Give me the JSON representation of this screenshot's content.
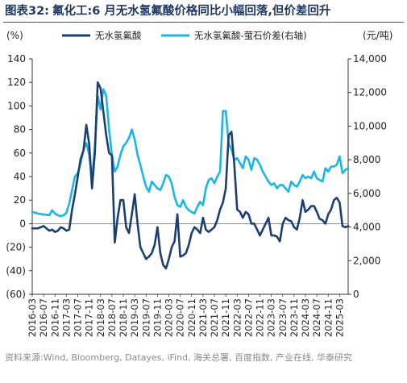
{
  "figure": {
    "number": "图表32:",
    "title": "氟化工:6 月无水氢氟酸价格同比小幅回落,但价差回升",
    "source": "资料来源:Wind, Bloomberg, Datayes, iFind, 海关总署, 百度指数, 产业在线, 华泰研究"
  },
  "colors": {
    "series1": "#1b3f73",
    "series2": "#19b6e8",
    "title": "#1f3864",
    "rule": "#9e2a2f"
  },
  "chart_data": {
    "type": "line",
    "left_unit": "(%)",
    "right_unit": "(元/吨)",
    "left_ticks": [
      "140",
      "120",
      "100",
      "80",
      "60",
      "40",
      "20",
      "0",
      "(20)",
      "(40)",
      "(60)"
    ],
    "right_ticks": [
      "14,000",
      "12,000",
      "10,000",
      "8,000",
      "6,000",
      "4,000",
      "2,000",
      "0"
    ],
    "ylim_left": [
      -60,
      140
    ],
    "ylim_right": [
      0,
      14000
    ],
    "x_tick_labels": [
      "2016-03",
      "2016-07",
      "2016-11",
      "2017-03",
      "2017-07",
      "2017-11",
      "2018-03",
      "2018-07",
      "2018-11",
      "2019-03",
      "2019-07",
      "2019-11",
      "2020-03",
      "2020-07",
      "2020-11",
      "2021-03",
      "2021-07",
      "2021-11",
      "2022-03",
      "2022-07",
      "2022-11",
      "2023-03",
      "2023-07",
      "2023-11",
      "2024-03",
      "2024-07",
      "2024-11",
      "2025-03"
    ],
    "x_start": "2016-03",
    "x_end": "2025-06",
    "legend": [
      "无水氢氟酸",
      "无水氢氟酸-萤石价差(右轴)"
    ],
    "series": [
      {
        "name": "无水氢氟酸",
        "axis": "left",
        "points": [
          [
            "2016-03",
            -4
          ],
          [
            "2016-05",
            -4
          ],
          [
            "2016-07",
            -2
          ],
          [
            "2016-08",
            -4
          ],
          [
            "2016-09",
            -6
          ],
          [
            "2016-10",
            -5
          ],
          [
            "2016-11",
            -7
          ],
          [
            "2016-12",
            -6
          ],
          [
            "2017-01",
            -3
          ],
          [
            "2017-02",
            -4
          ],
          [
            "2017-03",
            -6
          ],
          [
            "2017-04",
            -5
          ],
          [
            "2017-05",
            12
          ],
          [
            "2017-06",
            25
          ],
          [
            "2017-07",
            40
          ],
          [
            "2017-08",
            55
          ],
          [
            "2017-09",
            62
          ],
          [
            "2017-10",
            84
          ],
          [
            "2017-11",
            68
          ],
          [
            "2017-12",
            30
          ],
          [
            "2018-01",
            60
          ],
          [
            "2018-02",
            120
          ],
          [
            "2018-03",
            115
          ],
          [
            "2018-04",
            95
          ],
          [
            "2018-05",
            75
          ],
          [
            "2018-06",
            60
          ],
          [
            "2018-07",
            58
          ],
          [
            "2018-08",
            -16
          ],
          [
            "2018-09",
            5
          ],
          [
            "2018-10",
            20
          ],
          [
            "2018-11",
            20
          ],
          [
            "2018-12",
            -3
          ],
          [
            "2019-01",
            -8
          ],
          [
            "2019-02",
            8
          ],
          [
            "2019-03",
            25
          ],
          [
            "2019-04",
            0
          ],
          [
            "2019-05",
            -20
          ],
          [
            "2019-06",
            -25
          ],
          [
            "2019-07",
            -30
          ],
          [
            "2019-08",
            -28
          ],
          [
            "2019-09",
            -25
          ],
          [
            "2019-10",
            -18
          ],
          [
            "2019-11",
            -3
          ],
          [
            "2019-12",
            -25
          ],
          [
            "2020-01",
            -35
          ],
          [
            "2020-02",
            -38
          ],
          [
            "2020-03",
            -30
          ],
          [
            "2020-04",
            -20
          ],
          [
            "2020-05",
            -15
          ],
          [
            "2020-06",
            8
          ],
          [
            "2020-07",
            -28
          ],
          [
            "2020-08",
            -27
          ],
          [
            "2020-09",
            -25
          ],
          [
            "2020-10",
            -18
          ],
          [
            "2020-11",
            -8
          ],
          [
            "2020-12",
            -3
          ],
          [
            "2021-01",
            -5
          ],
          [
            "2021-02",
            -8
          ],
          [
            "2021-03",
            5
          ],
          [
            "2021-04",
            -5
          ],
          [
            "2021-05",
            -7
          ],
          [
            "2021-06",
            -5
          ],
          [
            "2021-07",
            -3
          ],
          [
            "2021-08",
            3
          ],
          [
            "2021-09",
            12
          ],
          [
            "2021-10",
            18
          ],
          [
            "2021-11",
            30
          ],
          [
            "2021-12",
            75
          ],
          [
            "2022-01",
            78
          ],
          [
            "2022-02",
            50
          ],
          [
            "2022-03",
            12
          ],
          [
            "2022-04",
            10
          ],
          [
            "2022-05",
            5
          ],
          [
            "2022-06",
            10
          ],
          [
            "2022-07",
            8
          ],
          [
            "2022-08",
            0
          ],
          [
            "2022-09",
            0
          ],
          [
            "2022-10",
            -5
          ],
          [
            "2022-11",
            -10
          ],
          [
            "2022-12",
            -5
          ],
          [
            "2023-01",
            0
          ],
          [
            "2023-02",
            5
          ],
          [
            "2023-03",
            -10
          ],
          [
            "2023-04",
            -10
          ],
          [
            "2023-05",
            -11
          ],
          [
            "2023-06",
            -15
          ],
          [
            "2023-07",
            0
          ],
          [
            "2023-08",
            5
          ],
          [
            "2023-09",
            3
          ],
          [
            "2023-10",
            2
          ],
          [
            "2023-11",
            -3
          ],
          [
            "2023-12",
            -5
          ],
          [
            "2024-01",
            5
          ],
          [
            "2024-02",
            20
          ],
          [
            "2024-03",
            10
          ],
          [
            "2024-04",
            12
          ],
          [
            "2024-05",
            15
          ],
          [
            "2024-06",
            15
          ],
          [
            "2024-07",
            10
          ],
          [
            "2024-08",
            4
          ],
          [
            "2024-09",
            3
          ],
          [
            "2024-10",
            0
          ],
          [
            "2024-11",
            8
          ],
          [
            "2024-12",
            12
          ],
          [
            "2025-01",
            20
          ],
          [
            "2025-02",
            22
          ],
          [
            "2025-03",
            18
          ],
          [
            "2025-04",
            -2
          ],
          [
            "2025-05",
            -3
          ],
          [
            "2025-06",
            -2
          ]
        ]
      },
      {
        "name": "无水氢氟酸-萤石价差(右轴)",
        "axis": "right",
        "points": [
          [
            "2016-03",
            4900
          ],
          [
            "2016-05",
            4800
          ],
          [
            "2016-07",
            4750
          ],
          [
            "2016-09",
            4700
          ],
          [
            "2016-10",
            5000
          ],
          [
            "2016-11",
            4800
          ],
          [
            "2016-12",
            4700
          ],
          [
            "2017-01",
            4650
          ],
          [
            "2017-02",
            4700
          ],
          [
            "2017-03",
            4850
          ],
          [
            "2017-04",
            5400
          ],
          [
            "2017-05",
            6200
          ],
          [
            "2017-06",
            7000
          ],
          [
            "2017-07",
            7200
          ],
          [
            "2017-08",
            7800
          ],
          [
            "2017-09",
            8600
          ],
          [
            "2017-10",
            9000
          ],
          [
            "2017-11",
            8300
          ],
          [
            "2017-12",
            6900
          ],
          [
            "2018-01",
            8700
          ],
          [
            "2018-02",
            11800
          ],
          [
            "2018-03",
            11000
          ],
          [
            "2018-04",
            12200
          ],
          [
            "2018-05",
            11800
          ],
          [
            "2018-06",
            9800
          ],
          [
            "2018-07",
            8300
          ],
          [
            "2018-08",
            7300
          ],
          [
            "2018-09",
            7600
          ],
          [
            "2018-10",
            8300
          ],
          [
            "2018-11",
            8800
          ],
          [
            "2018-12",
            9000
          ],
          [
            "2019-01",
            9300
          ],
          [
            "2019-02",
            9800
          ],
          [
            "2019-03",
            9200
          ],
          [
            "2019-04",
            8300
          ],
          [
            "2019-05",
            7700
          ],
          [
            "2019-06",
            7000
          ],
          [
            "2019-07",
            6400
          ],
          [
            "2019-08",
            6100
          ],
          [
            "2019-09",
            6700
          ],
          [
            "2019-10",
            6500
          ],
          [
            "2019-11",
            6300
          ],
          [
            "2019-12",
            6200
          ],
          [
            "2020-01",
            6600
          ],
          [
            "2020-02",
            7100
          ],
          [
            "2020-03",
            7000
          ],
          [
            "2020-04",
            6600
          ],
          [
            "2020-05",
            5800
          ],
          [
            "2020-06",
            5300
          ],
          [
            "2020-07",
            5200
          ],
          [
            "2020-08",
            5600
          ],
          [
            "2020-09",
            5200
          ],
          [
            "2020-10",
            5000
          ],
          [
            "2020-11",
            4900
          ],
          [
            "2020-12",
            4800
          ],
          [
            "2021-01",
            5200
          ],
          [
            "2021-02",
            5500
          ],
          [
            "2021-03",
            5300
          ],
          [
            "2021-04",
            6300
          ],
          [
            "2021-05",
            6800
          ],
          [
            "2021-06",
            6900
          ],
          [
            "2021-07",
            6600
          ],
          [
            "2021-08",
            7000
          ],
          [
            "2021-09",
            7300
          ],
          [
            "2021-10",
            10900
          ],
          [
            "2021-11",
            10900
          ],
          [
            "2021-12",
            9000
          ],
          [
            "2022-01",
            8600
          ],
          [
            "2022-02",
            8000
          ],
          [
            "2022-03",
            8100
          ],
          [
            "2022-04",
            7800
          ],
          [
            "2022-05",
            7500
          ],
          [
            "2022-06",
            8200
          ],
          [
            "2022-07",
            8000
          ],
          [
            "2022-08",
            7400
          ],
          [
            "2022-09",
            8100
          ],
          [
            "2022-10",
            8000
          ],
          [
            "2022-11",
            7700
          ],
          [
            "2022-12",
            7300
          ],
          [
            "2023-01",
            7000
          ],
          [
            "2023-02",
            6700
          ],
          [
            "2023-03",
            6500
          ],
          [
            "2023-04",
            6600
          ],
          [
            "2023-05",
            6300
          ],
          [
            "2023-06",
            6500
          ],
          [
            "2023-07",
            6500
          ],
          [
            "2023-08",
            6300
          ],
          [
            "2023-09",
            6100
          ],
          [
            "2023-10",
            6700
          ],
          [
            "2023-11",
            6500
          ],
          [
            "2023-12",
            6400
          ],
          [
            "2024-01",
            6700
          ],
          [
            "2024-02",
            7100
          ],
          [
            "2024-03",
            6900
          ],
          [
            "2024-04",
            7000
          ],
          [
            "2024-05",
            6900
          ],
          [
            "2024-06",
            7300
          ],
          [
            "2024-07",
            6900
          ],
          [
            "2024-08",
            6800
          ],
          [
            "2024-09",
            6700
          ],
          [
            "2024-10",
            7500
          ],
          [
            "2024-11",
            7300
          ],
          [
            "2024-12",
            7600
          ],
          [
            "2025-01",
            7600
          ],
          [
            "2025-02",
            7700
          ],
          [
            "2025-03",
            8200
          ],
          [
            "2025-04",
            7200
          ],
          [
            "2025-05",
            7400
          ],
          [
            "2025-06",
            7500
          ]
        ]
      }
    ]
  }
}
